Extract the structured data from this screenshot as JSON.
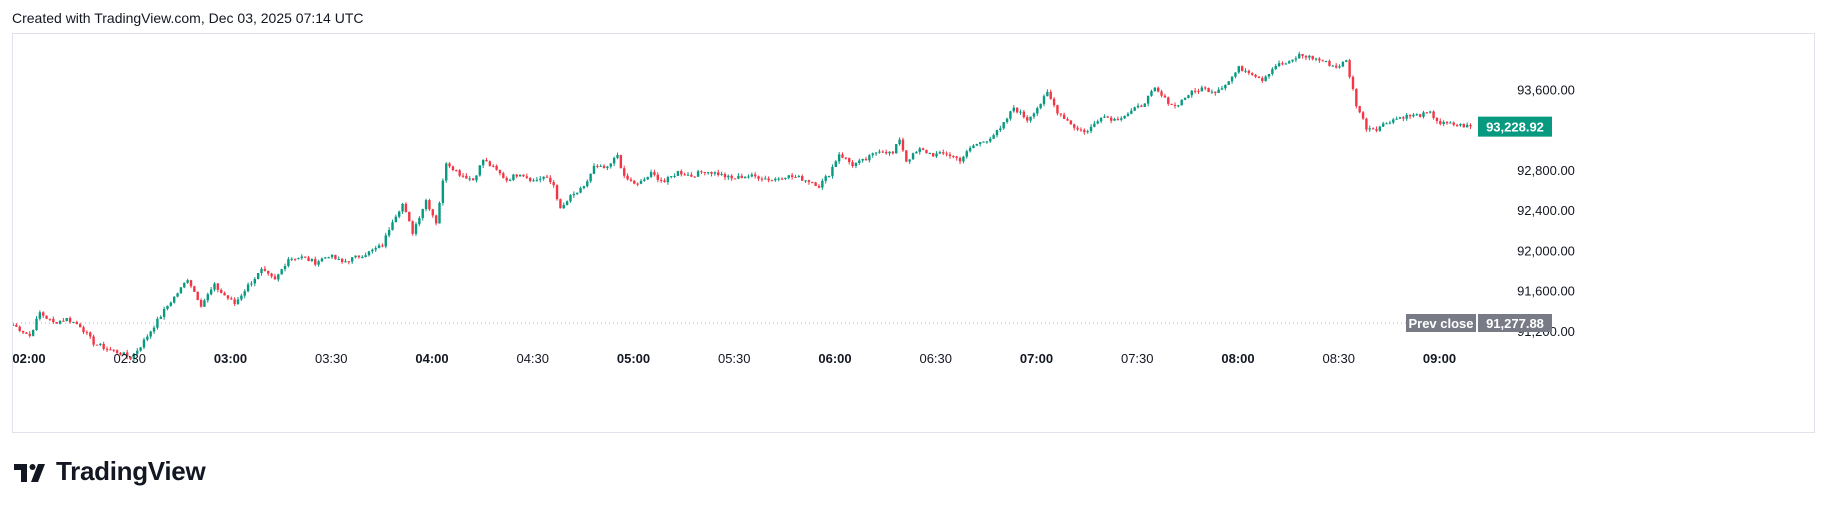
{
  "header": {
    "created_with": "Created with TradingView.com, Dec 03, 2025 07:14 UTC"
  },
  "logo": {
    "icon": "tradingview-logo-icon",
    "text": "TradingView"
  },
  "colors": {
    "up": "#089981",
    "down": "#f23645",
    "price_tag": "#089981",
    "prev_close_tag": "#787b86",
    "grid_line": "#b2b5be"
  },
  "chart_data": {
    "type": "candlestick",
    "interval_minutes": 1,
    "x_start": "02:00",
    "x_end": "09:14",
    "x_ticks": [
      {
        "label": "02:00",
        "bold": true
      },
      {
        "label": "02:30",
        "bold": false
      },
      {
        "label": "03:00",
        "bold": true
      },
      {
        "label": "03:30",
        "bold": false
      },
      {
        "label": "04:00",
        "bold": true
      },
      {
        "label": "04:30",
        "bold": false
      },
      {
        "label": "05:00",
        "bold": true
      },
      {
        "label": "05:30",
        "bold": false
      },
      {
        "label": "06:00",
        "bold": true
      },
      {
        "label": "06:30",
        "bold": false
      },
      {
        "label": "07:00",
        "bold": true
      },
      {
        "label": "07:30",
        "bold": false
      },
      {
        "label": "08:00",
        "bold": true
      },
      {
        "label": "08:30",
        "bold": false
      },
      {
        "label": "09:00",
        "bold": true
      }
    ],
    "y_ticks": [
      {
        "value": 91200,
        "label": "91,200.00"
      },
      {
        "value": 91600,
        "label": "91,600.00"
      },
      {
        "value": 92000,
        "label": "92,000.00"
      },
      {
        "value": 92400,
        "label": "92,400.00"
      },
      {
        "value": 92800,
        "label": "92,800.00"
      },
      {
        "value": 93600,
        "label": "93,600.00"
      }
    ],
    "ylim": [
      90950,
      94050
    ],
    "last_price": {
      "value": 93228.92,
      "label": "93,228.92"
    },
    "prev_close": {
      "value": 91277.88,
      "label": "91,277.88",
      "title": "Prev close"
    },
    "close_path": [
      [
        "02:00",
        91260
      ],
      [
        "02:05",
        91150
      ],
      [
        "02:08",
        91380
      ],
      [
        "02:12",
        91280
      ],
      [
        "02:16",
        91320
      ],
      [
        "02:20",
        91250
      ],
      [
        "02:24",
        91080
      ],
      [
        "02:28",
        91020
      ],
      [
        "02:32",
        90980
      ],
      [
        "02:35",
        90930
      ],
      [
        "02:38",
        91050
      ],
      [
        "02:42",
        91250
      ],
      [
        "02:46",
        91450
      ],
      [
        "02:50",
        91620
      ],
      [
        "02:52",
        91720
      ],
      [
        "02:56",
        91460
      ],
      [
        "03:00",
        91650
      ],
      [
        "03:02",
        91580
      ],
      [
        "03:06",
        91470
      ],
      [
        "03:10",
        91650
      ],
      [
        "03:14",
        91800
      ],
      [
        "03:18",
        91700
      ],
      [
        "03:22",
        91920
      ],
      [
        "03:26",
        91930
      ],
      [
        "03:30",
        91880
      ],
      [
        "03:34",
        91950
      ],
      [
        "03:38",
        91880
      ],
      [
        "03:42",
        91930
      ],
      [
        "03:46",
        91980
      ],
      [
        "03:50",
        92050
      ],
      [
        "03:53",
        92300
      ],
      [
        "03:56",
        92460
      ],
      [
        "03:59",
        92180
      ],
      [
        "04:03",
        92500
      ],
      [
        "04:06",
        92280
      ],
      [
        "04:09",
        92880
      ],
      [
        "04:13",
        92760
      ],
      [
        "04:17",
        92700
      ],
      [
        "04:20",
        92900
      ],
      [
        "04:23",
        92820
      ],
      [
        "04:27",
        92700
      ],
      [
        "04:31",
        92770
      ],
      [
        "04:35",
        92690
      ],
      [
        "04:38",
        92730
      ],
      [
        "04:41",
        92650
      ],
      [
        "04:43",
        92400
      ],
      [
        "04:46",
        92530
      ],
      [
        "04:50",
        92620
      ],
      [
        "04:53",
        92830
      ],
      [
        "04:57",
        92810
      ],
      [
        "05:00",
        92950
      ],
      [
        "05:02",
        92720
      ],
      [
        "05:06",
        92650
      ],
      [
        "05:10",
        92760
      ],
      [
        "05:14",
        92680
      ],
      [
        "05:18",
        92780
      ],
      [
        "05:22",
        92740
      ],
      [
        "05:26",
        92790
      ],
      [
        "05:30",
        92760
      ],
      [
        "05:34",
        92710
      ],
      [
        "05:38",
        92740
      ],
      [
        "05:42",
        92730
      ],
      [
        "05:46",
        92700
      ],
      [
        "05:50",
        92740
      ],
      [
        "05:54",
        92720
      ],
      [
        "05:58",
        92680
      ],
      [
        "06:00",
        92640
      ],
      [
        "06:03",
        92760
      ],
      [
        "06:06",
        92960
      ],
      [
        "06:10",
        92850
      ],
      [
        "06:14",
        92900
      ],
      [
        "06:18",
        93000
      ],
      [
        "06:22",
        92960
      ],
      [
        "06:24",
        93110
      ],
      [
        "06:26",
        92890
      ],
      [
        "06:30",
        93000
      ],
      [
        "06:34",
        92950
      ],
      [
        "06:38",
        92960
      ],
      [
        "06:42",
        92900
      ],
      [
        "06:46",
        93040
      ],
      [
        "06:50",
        93100
      ],
      [
        "06:54",
        93200
      ],
      [
        "06:58",
        93420
      ],
      [
        "07:02",
        93300
      ],
      [
        "07:06",
        93460
      ],
      [
        "07:08",
        93560
      ],
      [
        "07:11",
        93380
      ],
      [
        "07:14",
        93290
      ],
      [
        "07:17",
        93200
      ],
      [
        "07:20",
        93180
      ],
      [
        "07:24",
        93340
      ],
      [
        "07:28",
        93300
      ],
      [
        "07:32",
        93360
      ],
      [
        "07:36",
        93440
      ],
      [
        "07:40",
        93600
      ],
      [
        "07:43",
        93500
      ],
      [
        "07:46",
        93430
      ],
      [
        "07:50",
        93550
      ],
      [
        "07:54",
        93610
      ],
      [
        "07:58",
        93580
      ],
      [
        "08:02",
        93680
      ],
      [
        "08:05",
        93810
      ],
      [
        "08:08",
        93780
      ],
      [
        "08:12",
        93700
      ],
      [
        "08:16",
        93840
      ],
      [
        "08:20",
        93860
      ],
      [
        "08:23",
        93940
      ],
      [
        "08:26",
        93920
      ],
      [
        "08:30",
        93880
      ],
      [
        "08:34",
        93820
      ],
      [
        "08:37",
        93880
      ],
      [
        "08:40",
        93450
      ],
      [
        "08:43",
        93220
      ],
      [
        "08:46",
        93210
      ],
      [
        "08:50",
        93290
      ],
      [
        "08:54",
        93330
      ],
      [
        "08:58",
        93340
      ],
      [
        "09:02",
        93360
      ],
      [
        "09:05",
        93260
      ],
      [
        "09:09",
        93250
      ],
      [
        "09:14",
        93229
      ]
    ]
  }
}
